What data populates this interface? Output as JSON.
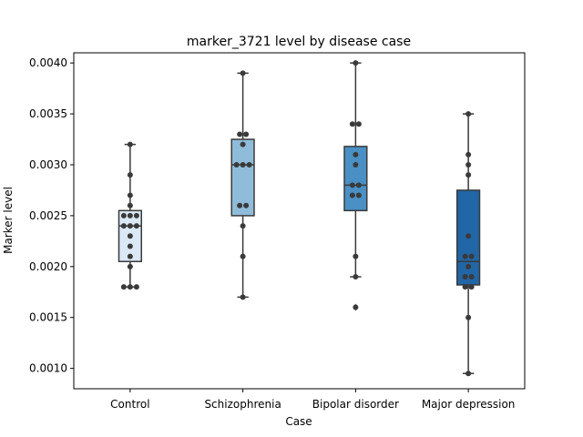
{
  "chart_data": {
    "type": "box",
    "title": "marker_3721 level by disease case",
    "xlabel": "Case",
    "ylabel": "Marker level",
    "ylim": [
      0.0008,
      0.0041
    ],
    "y_ticks": [
      "0.0010",
      "0.0015",
      "0.0020",
      "0.0025",
      "0.0030",
      "0.0035",
      "0.0040"
    ],
    "grid": false,
    "categories": [
      "Control",
      "Schizophrenia",
      "Bipolar disorder",
      "Major depression"
    ],
    "colors": [
      "#dbe9f6",
      "#8fbcd9",
      "#4a90c4",
      "#2166a6"
    ],
    "boxes": [
      {
        "category": "Control",
        "whisker_low": 0.0018,
        "q1": 0.00205,
        "median": 0.0024,
        "q3": 0.00255,
        "whisker_high": 0.0032,
        "outliers": [],
        "points": [
          0.0032,
          0.0029,
          0.0027,
          0.0026,
          0.0025,
          0.0025,
          0.0025,
          0.0024,
          0.0024,
          0.0024,
          0.0023,
          0.0022,
          0.0021,
          0.002,
          0.0018,
          0.0018,
          0.0018
        ]
      },
      {
        "category": "Schizophrenia",
        "whisker_low": 0.0017,
        "q1": 0.0025,
        "median": 0.003,
        "q3": 0.00325,
        "whisker_high": 0.0039,
        "outliers": [],
        "points": [
          0.0039,
          0.0033,
          0.0033,
          0.0032,
          0.003,
          0.003,
          0.003,
          0.0026,
          0.0026,
          0.0024,
          0.0021,
          0.0017
        ]
      },
      {
        "category": "Bipolar disorder",
        "whisker_low": 0.0019,
        "q1": 0.00255,
        "median": 0.0028,
        "q3": 0.00318,
        "whisker_high": 0.004,
        "outliers": [
          0.0016
        ],
        "points": [
          0.004,
          0.0034,
          0.0034,
          0.0031,
          0.003,
          0.0028,
          0.0028,
          0.0027,
          0.0027,
          0.0021,
          0.0019,
          0.0016
        ]
      },
      {
        "category": "Major depression",
        "whisker_low": 0.00095,
        "q1": 0.00182,
        "median": 0.00205,
        "q3": 0.00275,
        "whisker_high": 0.0035,
        "outliers": [],
        "points": [
          0.0035,
          0.0031,
          0.003,
          0.0029,
          0.0023,
          0.0021,
          0.0021,
          0.002,
          0.0019,
          0.0019,
          0.0018,
          0.0018,
          0.0015,
          0.00095
        ]
      }
    ]
  }
}
